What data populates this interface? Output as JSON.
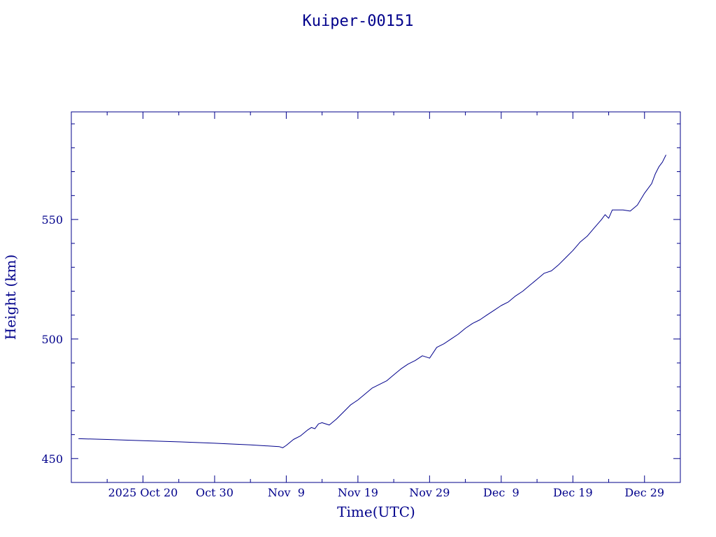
{
  "chart_data": {
    "type": "line",
    "title": "Kuiper-00151",
    "xlabel": "Time(UTC)",
    "ylabel": "Height (km)",
    "xlim": [
      "2025-10-10",
      "2026-01-03"
    ],
    "ylim": [
      440,
      595
    ],
    "x_tick_labels": [
      {
        "date": "2025-10-20",
        "label": "2025 Oct 20"
      },
      {
        "date": "2025-10-30",
        "label": "Oct 30"
      },
      {
        "date": "2025-11-09",
        "label": "Nov  9"
      },
      {
        "date": "2025-11-19",
        "label": "Nov 19"
      },
      {
        "date": "2025-11-29",
        "label": "Nov 29"
      },
      {
        "date": "2025-12-09",
        "label": "Dec  9"
      },
      {
        "date": "2025-12-19",
        "label": "Dec 19"
      },
      {
        "date": "2025-12-29",
        "label": "Dec 29"
      }
    ],
    "y_ticks": [
      450,
      500,
      550
    ],
    "grid": false,
    "series": [
      {
        "color": "#00008b",
        "points": [
          [
            "2025-10-11",
            458.3
          ],
          [
            "2025-10-15",
            458.0
          ],
          [
            "2025-10-20",
            457.5
          ],
          [
            "2025-10-25",
            457.0
          ],
          [
            "2025-10-30",
            456.4
          ],
          [
            "2025-11-04",
            455.7
          ],
          [
            "2025-11-08",
            455.0
          ],
          [
            "2025-11-08 12:00",
            454.5
          ],
          [
            "2025-11-09",
            455.5
          ],
          [
            "2025-11-10",
            458.0
          ],
          [
            "2025-11-11",
            459.5
          ],
          [
            "2025-11-12",
            462.0
          ],
          [
            "2025-11-12 12:00",
            463.0
          ],
          [
            "2025-11-13",
            462.5
          ],
          [
            "2025-11-13 12:00",
            464.5
          ],
          [
            "2025-11-14",
            465.0
          ],
          [
            "2025-11-15",
            464.0
          ],
          [
            "2025-11-16",
            466.5
          ],
          [
            "2025-11-17",
            469.5
          ],
          [
            "2025-11-18",
            472.5
          ],
          [
            "2025-11-19",
            474.5
          ],
          [
            "2025-11-20",
            477.0
          ],
          [
            "2025-11-21",
            479.5
          ],
          [
            "2025-11-22",
            481.0
          ],
          [
            "2025-11-23",
            482.5
          ],
          [
            "2025-11-24",
            485.0
          ],
          [
            "2025-11-25",
            487.5
          ],
          [
            "2025-11-26",
            489.5
          ],
          [
            "2025-11-27",
            491.0
          ],
          [
            "2025-11-28",
            493.0
          ],
          [
            "2025-11-29",
            492.0
          ],
          [
            "2025-11-30",
            496.5
          ],
          [
            "2025-12-01",
            498.0
          ],
          [
            "2025-12-02",
            500.0
          ],
          [
            "2025-12-03",
            502.0
          ],
          [
            "2025-12-04",
            504.5
          ],
          [
            "2025-12-05",
            506.5
          ],
          [
            "2025-12-06",
            508.0
          ],
          [
            "2025-12-07",
            510.0
          ],
          [
            "2025-12-08",
            512.0
          ],
          [
            "2025-12-09",
            514.0
          ],
          [
            "2025-12-10",
            515.5
          ],
          [
            "2025-12-11",
            518.0
          ],
          [
            "2025-12-12",
            520.0
          ],
          [
            "2025-12-13",
            522.5
          ],
          [
            "2025-12-14",
            525.0
          ],
          [
            "2025-12-15",
            527.5
          ],
          [
            "2025-12-16",
            528.5
          ],
          [
            "2025-12-17",
            531.0
          ],
          [
            "2025-12-18",
            534.0
          ],
          [
            "2025-12-19",
            537.0
          ],
          [
            "2025-12-20",
            540.5
          ],
          [
            "2025-12-21",
            543.0
          ],
          [
            "2025-12-22",
            546.5
          ],
          [
            "2025-12-23",
            550.0
          ],
          [
            "2025-12-23 12:00",
            552.0
          ],
          [
            "2025-12-24",
            550.5
          ],
          [
            "2025-12-24 12:00",
            554.0
          ],
          [
            "2025-12-26",
            554.0
          ],
          [
            "2025-12-27",
            553.5
          ],
          [
            "2025-12-28",
            556.0
          ],
          [
            "2025-12-29",
            561.0
          ],
          [
            "2025-12-30",
            565.0
          ],
          [
            "2025-12-30 12:00",
            569.0
          ],
          [
            "2025-12-31",
            572.0
          ],
          [
            "2025-12-31 12:00",
            574.0
          ],
          [
            "2026-01-01",
            577.0
          ]
        ]
      }
    ]
  }
}
